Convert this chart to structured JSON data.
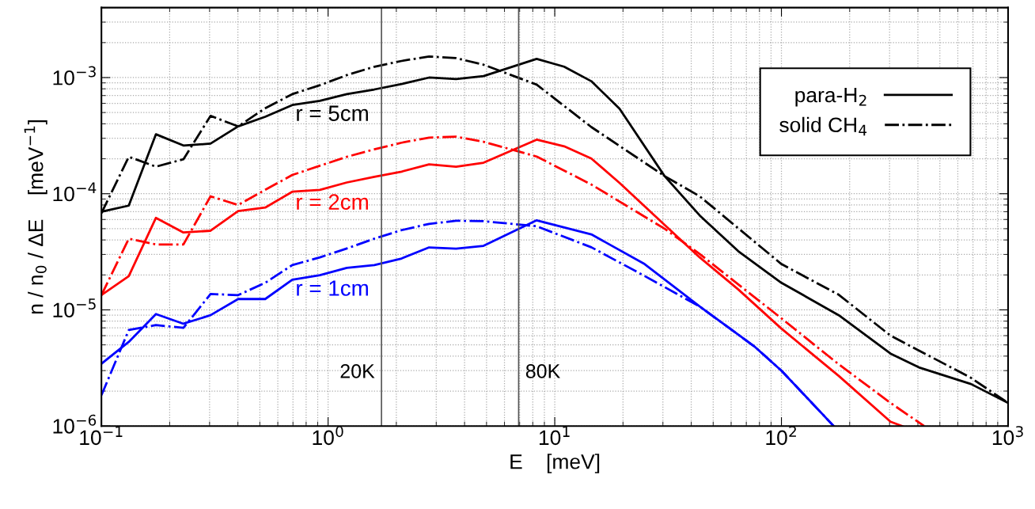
{
  "chart_data": {
    "type": "line",
    "xlabel": "E    [meV]",
    "ylabel": "n / n$_{0}$ / ΔE    [meV$^{−1}$]",
    "log": "xy",
    "grid": true,
    "legend": "top right",
    "xlim": [
      0.1,
      1000
    ],
    "ylim": [
      1e-06,
      0.004
    ],
    "xticks": [
      {
        "value": 0.1,
        "label": "10$^{−1}$"
      },
      {
        "value": 1,
        "label": "10$^{0}$"
      },
      {
        "value": 10,
        "label": "10$^{1}$"
      },
      {
        "value": 100,
        "label": "10$^{2}$"
      },
      {
        "value": 1000,
        "label": "10$^{3}$"
      }
    ],
    "yticks": [
      {
        "value": 1e-06,
        "label": "10$^{−6}$"
      },
      {
        "value": 1e-05,
        "label": "10$^{−5}$"
      },
      {
        "value": 0.0001,
        "label": "10$^{−4}$"
      },
      {
        "value": 0.001,
        "label": "10$^{−3}$"
      }
    ],
    "series": [
      {
        "name": "para-H$_{2}$",
        "color": "#000000",
        "line_style": "solid",
        "x": [
          0.1,
          0.132,
          0.174,
          0.23,
          0.303,
          0.401,
          0.528,
          0.695,
          0.92,
          1.21,
          1.6,
          2.11,
          2.79,
          3.67,
          4.85,
          8.32,
          11.0,
          14.5,
          19.3,
          30.5,
          43.6,
          64.5,
          100,
          179,
          303,
          404,
          686,
          1000
        ],
        "values": [
          7e-05,
          7.9e-05,
          0.000325,
          0.00026,
          0.00027,
          0.00038,
          0.00046,
          0.00058,
          0.00063,
          0.00072,
          0.00079,
          0.00088,
          0.001,
          0.00097,
          0.00103,
          0.00145,
          0.00124,
          0.00093,
          0.00054,
          0.000142,
          6.5e-05,
          3.2e-05,
          1.71e-05,
          9e-06,
          4.2e-06,
          3.2e-06,
          2.3e-06,
          1.58e-06
        ]
      },
      {
        "name": "solid CH$_{4}$",
        "color": "#000000",
        "line_style": "dashdot",
        "x": [
          0.1,
          0.132,
          0.174,
          0.23,
          0.303,
          0.401,
          0.528,
          0.695,
          0.92,
          1.21,
          1.6,
          2.11,
          2.79,
          3.67,
          4.85,
          8.32,
          14.5,
          30.5,
          43.6,
          100,
          179,
          303,
          686,
          1000
        ],
        "values": [
          6.8e-05,
          0.000208,
          0.000171,
          0.000198,
          0.000468,
          0.00038,
          0.000544,
          0.00072,
          0.00086,
          0.00105,
          0.00124,
          0.00139,
          0.00152,
          0.00147,
          0.00129,
          0.00087,
          0.000375,
          0.000142,
          9.5e-05,
          2.48e-05,
          1.35e-05,
          6e-06,
          2.6e-06,
          1.58e-06
        ]
      },
      {
        "color": "#ff0000",
        "line_style": "solid",
        "x": [
          0.1,
          0.132,
          0.174,
          0.23,
          0.303,
          0.401,
          0.528,
          0.695,
          0.92,
          1.21,
          1.6,
          2.11,
          2.79,
          3.67,
          4.85,
          8.32,
          11.0,
          14.5,
          19.3,
          30.5,
          43.6,
          64.5,
          100,
          179,
          303,
          341
        ],
        "values": [
          1.34e-05,
          1.95e-05,
          6.2e-05,
          4.64e-05,
          4.8e-05,
          7.1e-05,
          7.6e-05,
          0.000104,
          0.000108,
          0.000125,
          0.00014,
          0.000155,
          0.000179,
          0.000171,
          0.000185,
          0.000292,
          0.000256,
          0.000201,
          0.000124,
          5.4e-05,
          2.83e-05,
          1.5e-05,
          6.9e-06,
          2.7e-06,
          1.09e-06,
          1e-06
        ]
      },
      {
        "color": "#ff0000",
        "line_style": "dashdot",
        "x": [
          0.1,
          0.132,
          0.174,
          0.23,
          0.303,
          0.401,
          0.528,
          0.695,
          0.92,
          1.21,
          1.6,
          2.11,
          2.79,
          3.67,
          4.85,
          8.32,
          14.5,
          30.5,
          43.6,
          100,
          179,
          303,
          426
        ],
        "values": [
          1.34e-05,
          4.1e-05,
          3.66e-05,
          3.66e-05,
          9.5e-05,
          8e-05,
          0.000108,
          0.000145,
          0.000174,
          0.000208,
          0.000241,
          0.000275,
          0.000304,
          0.00031,
          0.00028,
          0.000209,
          0.00012,
          5e-05,
          3.03e-05,
          8.45e-06,
          3.4e-06,
          1.58e-06,
          1e-06
        ]
      },
      {
        "color": "#0000ff",
        "line_style": "solid",
        "x": [
          0.1,
          0.132,
          0.174,
          0.23,
          0.303,
          0.401,
          0.528,
          0.695,
          0.92,
          1.21,
          1.6,
          2.11,
          2.79,
          3.67,
          4.85,
          8.32,
          14.5,
          24.9,
          43.6,
          76.4,
          100,
          170
        ],
        "values": [
          3.44e-06,
          5.3e-06,
          9.2e-06,
          7.6e-06,
          9e-06,
          1.24e-05,
          1.24e-05,
          1.82e-05,
          1.99e-05,
          2.3e-05,
          2.43e-05,
          2.77e-05,
          3.45e-05,
          3.36e-05,
          3.56e-05,
          5.9e-05,
          4.47e-05,
          2.48e-05,
          1.07e-05,
          4.8e-06,
          3e-06,
          1e-06
        ]
      },
      {
        "color": "#0000ff",
        "line_style": "dashdot",
        "x": [
          0.1,
          0.132,
          0.174,
          0.23,
          0.303,
          0.401,
          0.528,
          0.695,
          0.92,
          1.21,
          1.6,
          2.11,
          2.79,
          3.67,
          4.85,
          8.32,
          14.5,
          24.9,
          36.1,
          43.6,
          76.4,
          100,
          170
        ],
        "values": [
          1.84e-06,
          6.7e-06,
          7.4e-06,
          7e-06,
          1.37e-05,
          1.34e-05,
          1.71e-05,
          2.43e-05,
          2.83e-05,
          3.38e-05,
          4.1e-05,
          4.86e-05,
          5.5e-05,
          5.85e-05,
          5.8e-05,
          5.25e-05,
          3.46e-05,
          1.96e-05,
          1.31e-05,
          1.07e-05,
          4.8e-06,
          3e-06,
          1e-06
        ]
      }
    ],
    "ref_lines": [
      {
        "axis": "x",
        "value": 1.72,
        "label": "20K",
        "color": "#555555"
      },
      {
        "axis": "x",
        "value": 6.93,
        "label": "80K",
        "color": "#555555"
      }
    ],
    "annotations": [
      "r = 5cm",
      "r = 2cm",
      "r = 1cm"
    ]
  }
}
